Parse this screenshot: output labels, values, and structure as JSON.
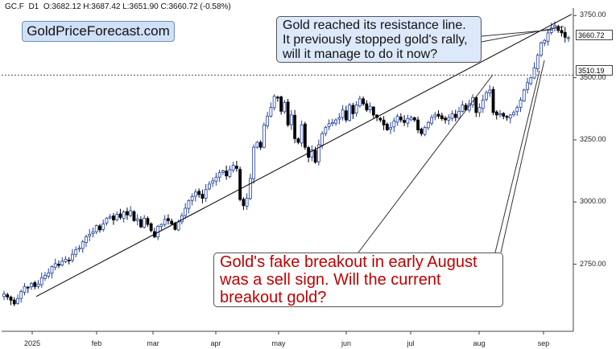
{
  "header": {
    "symbol": "GC.F",
    "timeframe": "D1",
    "ohlc": "O:3682.12  H:3687.42  L:3651.90  C:3660.72  (-0.58%)"
  },
  "branding": {
    "site": "GoldPriceForecast.com"
  },
  "annotations": {
    "resistance_note": [
      "Gold reached its resistance line.",
      "It previously stopped gold's rally,",
      "will it manage to do it now?"
    ],
    "breakout_note": [
      "Gold's fake breakout in early August",
      "was a sell sign. Will the current",
      "breakout gold?"
    ]
  },
  "price_labels": {
    "last": "3660.72",
    "level": "3510.19"
  },
  "chart_data": {
    "type": "candlestick",
    "title": "",
    "y_ticks": [
      "3750.00",
      "3500.00",
      "3250.00",
      "3000.00",
      "2750.00"
    ],
    "y_tick_values": [
      3750,
      3500,
      3250,
      3000,
      2750
    ],
    "x_tick_labels": [
      "2025",
      "feb",
      "mar",
      "apr",
      "may",
      "jun",
      "jul",
      "aug",
      "sep"
    ],
    "ylim": [
      2480,
      3780
    ],
    "horizontal_level": 3510.19,
    "last_close": 3660.72,
    "grid": false,
    "colors": {
      "up": "#1f3f9f",
      "down": "#000000",
      "line": "#000000",
      "brand_box": "#cfe0f7",
      "red_text": "#c00000"
    },
    "trendline_start": [
      "2025-01-02",
      2620
    ],
    "trendline_end": [
      "2025-09-17",
      3755
    ],
    "closes": [
      2630,
      2618,
      2605,
      2590,
      2612,
      2640,
      2660,
      2655,
      2672,
      2660,
      2670,
      2695,
      2705,
      2715,
      2740,
      2752,
      2745,
      2762,
      2770,
      2765,
      2790,
      2808,
      2815,
      2840,
      2860,
      2870,
      2880,
      2905,
      2888,
      2912,
      2935,
      2940,
      2928,
      2950,
      2938,
      2960,
      2948,
      2965,
      2925,
      2932,
      2900,
      2935,
      2910,
      2885,
      2860,
      2902,
      2910,
      2930,
      2925,
      2912,
      2890,
      2920,
      2945,
      2975,
      3005,
      3022,
      3040,
      3030,
      3015,
      3050,
      3072,
      3085,
      3100,
      3118,
      3125,
      3105,
      3130,
      3148,
      3135,
      3010,
      2985,
      3015,
      3095,
      3220,
      3240,
      3220,
      3310,
      3345,
      3380,
      3425,
      3420,
      3365,
      3400,
      3310,
      3350,
      3255,
      3240,
      3310,
      3220,
      3180,
      3210,
      3160,
      3230,
      3275,
      3300,
      3315,
      3320,
      3330,
      3340,
      3370,
      3330,
      3390,
      3355,
      3390,
      3415,
      3395,
      3370,
      3385,
      3350,
      3340,
      3330,
      3310,
      3290,
      3300,
      3325,
      3345,
      3330,
      3320,
      3335,
      3340,
      3330,
      3290,
      3275,
      3300,
      3320,
      3340,
      3350,
      3345,
      3335,
      3330,
      3340,
      3355,
      3340,
      3365,
      3390,
      3370,
      3395,
      3420,
      3360,
      3380,
      3410,
      3440,
      3450,
      3360,
      3350,
      3355,
      3345,
      3340,
      3350,
      3360,
      3380,
      3410,
      3450,
      3480,
      3500,
      3540,
      3590,
      3640,
      3650,
      3680,
      3700,
      3710,
      3690,
      3680,
      3662,
      3660.72
    ]
  }
}
